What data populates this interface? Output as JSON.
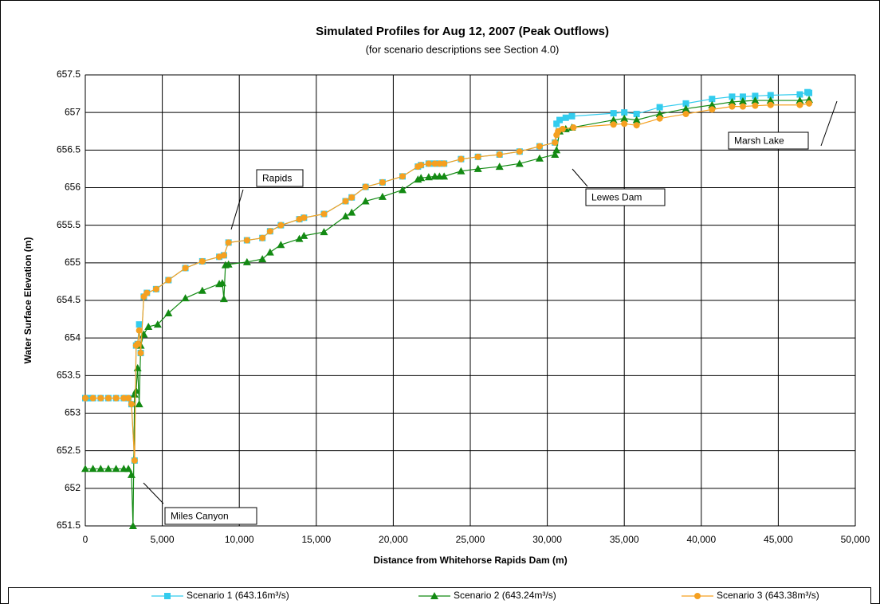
{
  "chart_data": {
    "type": "line",
    "title": "Simulated Profiles for Aug 12, 2007 (Peak Outflows)",
    "subtitle": "(for scenario descriptions see Section 4.0)",
    "x_label": "Distance from Whitehorse Rapids Dam (m)",
    "y_label": "Water Surface Elevation (m)",
    "xlim": [
      0,
      50000
    ],
    "ylim": [
      651.5,
      657.5
    ],
    "grid": true,
    "legend": "bottom",
    "xticks": [
      0,
      {
        "value": 5000,
        "label": "5,000"
      },
      {
        "value": 10000,
        "label": "10,000"
      },
      {
        "value": 15000,
        "label": "15,000"
      },
      {
        "value": 20000,
        "label": "20,000"
      },
      {
        "value": 25000,
        "label": "25,000"
      },
      {
        "value": 30000,
        "label": "30,000"
      },
      {
        "value": 35000,
        "label": "35,000"
      },
      {
        "value": 40000,
        "label": "40,000"
      },
      {
        "value": 45000,
        "label": "45,000"
      },
      {
        "value": 50000,
        "label": "50,000"
      }
    ],
    "yticks": [
      651.5,
      652,
      652.5,
      653,
      653.5,
      654,
      654.5,
      655,
      655.5,
      656,
      656.5,
      657,
      657.5
    ],
    "annotations": [
      "Rapids",
      "Miles Canyon",
      "Lewes Dam",
      "Marsh Lake"
    ],
    "series": [
      {
        "name": "Scenario 1 (643.16m³/s)",
        "color": "#33ccee",
        "marker": "square",
        "x": [
          0,
          200,
          500,
          1000,
          1500,
          2000,
          2500,
          2800,
          3000,
          3200,
          3300,
          3400,
          3500,
          3600,
          3800,
          4000,
          4600,
          5400,
          6500,
          7600,
          8700,
          9000,
          9300,
          10500,
          11500,
          12000,
          12700,
          13900,
          14200,
          15500,
          16900,
          17300,
          18200,
          19300,
          20600,
          21600,
          21800,
          22300,
          22700,
          23000,
          23300,
          24400,
          25500,
          26900,
          28200,
          29500,
          30500,
          30600,
          30800,
          31200,
          31600,
          34300,
          35000,
          35800,
          37300,
          39000,
          40700,
          42000,
          42700,
          43500,
          44500,
          46400,
          46900,
          47000
        ],
        "values": [
          653.2,
          653.2,
          653.2,
          653.2,
          653.2,
          653.2,
          653.2,
          653.2,
          653.12,
          652.37,
          653.9,
          653.92,
          654.18,
          653.8,
          654.55,
          654.6,
          654.65,
          654.77,
          654.93,
          655.02,
          655.08,
          655.1,
          655.27,
          655.3,
          655.33,
          655.42,
          655.5,
          655.58,
          655.6,
          655.65,
          655.82,
          655.87,
          656.01,
          656.07,
          656.15,
          656.28,
          656.3,
          656.32,
          656.32,
          656.32,
          656.32,
          656.38,
          656.41,
          656.44,
          656.48,
          656.55,
          656.6,
          656.85,
          656.9,
          656.93,
          656.95,
          656.99,
          657.0,
          656.98,
          657.07,
          657.12,
          657.18,
          657.21,
          657.21,
          657.22,
          657.23,
          657.24,
          657.27,
          657.26
        ]
      },
      {
        "name": "Scenario 2 (643.24m³/s)",
        "color": "#138a13",
        "marker": "triangle",
        "x": [
          0,
          500,
          1000,
          1500,
          2000,
          2500,
          2800,
          3000,
          3100,
          3200,
          3300,
          3400,
          3500,
          3600,
          3800,
          4100,
          4700,
          5400,
          6500,
          7600,
          8700,
          8900,
          9000,
          9100,
          9300,
          10500,
          11500,
          12000,
          12700,
          13900,
          14200,
          15500,
          16900,
          17300,
          18200,
          19300,
          20600,
          21600,
          21800,
          22300,
          22700,
          23000,
          23300,
          24400,
          25500,
          26900,
          28200,
          29500,
          30500,
          30600,
          30800,
          31200,
          31600,
          34300,
          35000,
          35800,
          37300,
          39000,
          40700,
          42000,
          42700,
          43500,
          44500,
          46400,
          47000
        ],
        "values": [
          652.26,
          652.26,
          652.26,
          652.26,
          652.26,
          652.26,
          652.26,
          652.18,
          651.5,
          653.25,
          653.3,
          653.6,
          653.12,
          653.9,
          654.05,
          654.15,
          654.18,
          654.33,
          654.53,
          654.63,
          654.72,
          654.73,
          654.52,
          654.97,
          654.98,
          655.01,
          655.05,
          655.14,
          655.24,
          655.32,
          655.36,
          655.41,
          655.62,
          655.67,
          655.82,
          655.88,
          655.97,
          656.11,
          656.13,
          656.14,
          656.15,
          656.15,
          656.15,
          656.22,
          656.25,
          656.28,
          656.32,
          656.39,
          656.44,
          656.5,
          656.75,
          656.78,
          656.8,
          656.9,
          656.92,
          656.9,
          656.98,
          657.05,
          657.1,
          657.14,
          657.15,
          657.16,
          657.16,
          657.16,
          657.17
        ]
      },
      {
        "name": "Scenario 3 (643.38m³/s)",
        "color": "#f5a020",
        "marker": "circle",
        "x": [
          0,
          500,
          1000,
          1500,
          2000,
          2500,
          2800,
          3000,
          3200,
          3300,
          3400,
          3500,
          3600,
          3800,
          4000,
          4600,
          5400,
          6500,
          7600,
          8700,
          9000,
          9300,
          10500,
          11500,
          12000,
          12700,
          13900,
          14200,
          15500,
          16900,
          17300,
          18200,
          19300,
          20600,
          21600,
          21800,
          22300,
          22700,
          23000,
          23300,
          24400,
          25500,
          26900,
          28200,
          29500,
          30500,
          30600,
          30700,
          31000,
          31700,
          34300,
          35000,
          35800,
          37300,
          39000,
          40700,
          42000,
          42700,
          43500,
          44500,
          46400,
          47000
        ],
        "values": [
          653.2,
          653.2,
          653.2,
          653.2,
          653.2,
          653.2,
          653.2,
          653.12,
          652.37,
          653.9,
          653.92,
          654.1,
          653.8,
          654.55,
          654.6,
          654.65,
          654.77,
          654.93,
          655.02,
          655.08,
          655.1,
          655.27,
          655.3,
          655.33,
          655.42,
          655.5,
          655.58,
          655.6,
          655.65,
          655.82,
          655.87,
          656.01,
          656.07,
          656.15,
          656.28,
          656.3,
          656.32,
          656.32,
          656.32,
          656.32,
          656.38,
          656.41,
          656.44,
          656.48,
          656.55,
          656.6,
          656.7,
          656.75,
          656.78,
          656.8,
          656.84,
          656.85,
          656.83,
          656.92,
          656.98,
          657.04,
          657.08,
          657.08,
          657.09,
          657.1,
          657.1,
          657.12
        ]
      }
    ]
  }
}
